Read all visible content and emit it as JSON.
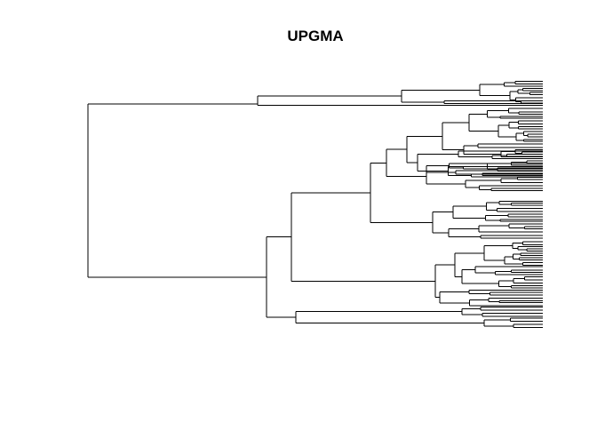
{
  "title": "UPGMA",
  "colors": {
    "background": "#ffffff",
    "branch": "#000000",
    "title": "#000000"
  }
}
